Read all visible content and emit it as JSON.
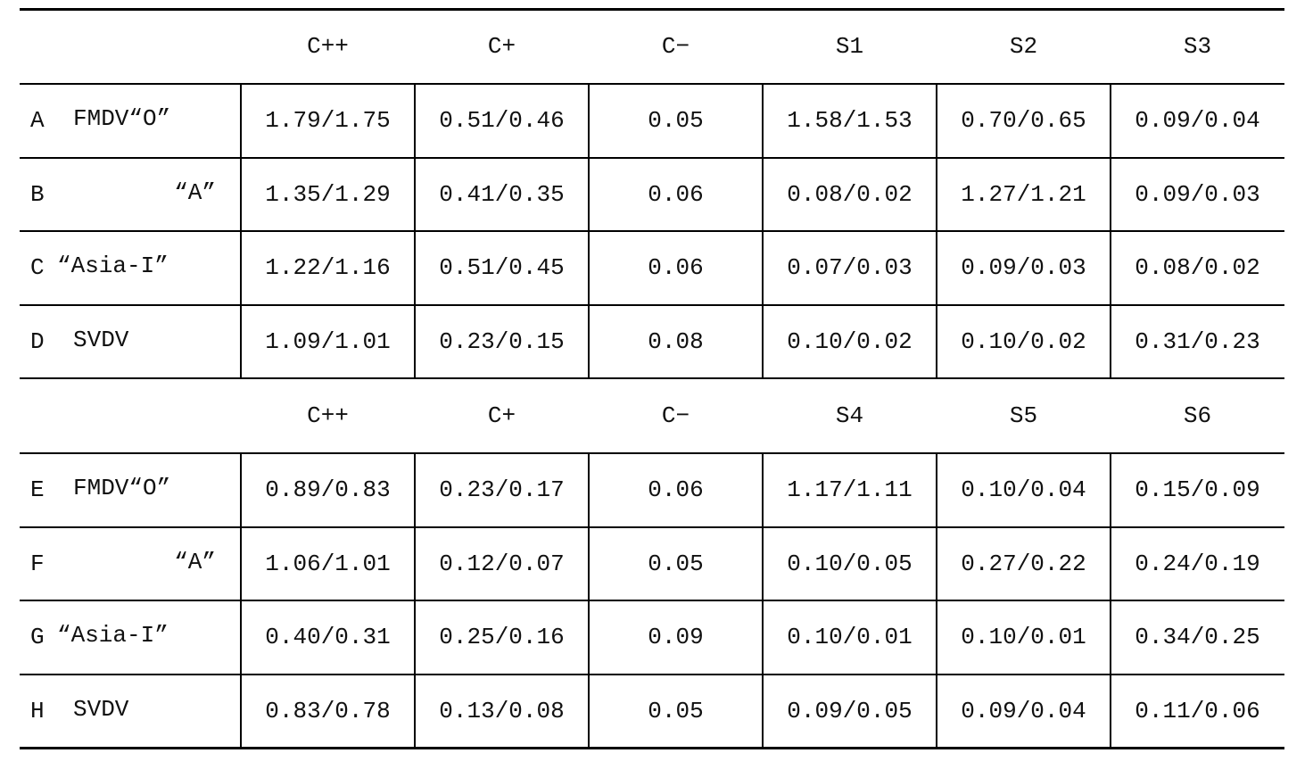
{
  "blocks": [
    {
      "header": [
        "C++",
        "C+",
        "C−",
        "S1",
        "S2",
        "S3"
      ],
      "rows": [
        {
          "label": "A",
          "name": "FMDV“O”",
          "values": [
            "1.79/1.75",
            "0.51/0.46",
            "0.05",
            "1.58/1.53",
            "0.70/0.65",
            "0.09/0.04"
          ]
        },
        {
          "label": "B",
          "name": "“A”",
          "values": [
            "1.35/1.29",
            "0.41/0.35",
            "0.06",
            "0.08/0.02",
            "1.27/1.21",
            "0.09/0.03"
          ]
        },
        {
          "label": "C",
          "name": "“Asia-I”",
          "values": [
            "1.22/1.16",
            "0.51/0.45",
            "0.06",
            "0.07/0.03",
            "0.09/0.03",
            "0.08/0.02"
          ]
        },
        {
          "label": "D",
          "name": "SVDV",
          "values": [
            "1.09/1.01",
            "0.23/0.15",
            "0.08",
            "0.10/0.02",
            "0.10/0.02",
            "0.31/0.23"
          ]
        }
      ]
    },
    {
      "header": [
        "C++",
        "C+",
        "C−",
        "S4",
        "S5",
        "S6"
      ],
      "rows": [
        {
          "label": "E",
          "name": "FMDV“O”",
          "values": [
            "0.89/0.83",
            "0.23/0.17",
            "0.06",
            "1.17/1.11",
            "0.10/0.04",
            "0.15/0.09"
          ]
        },
        {
          "label": "F",
          "name": "“A”",
          "values": [
            "1.06/1.01",
            "0.12/0.07",
            "0.05",
            "0.10/0.05",
            "0.27/0.22",
            "0.24/0.19"
          ]
        },
        {
          "label": "G",
          "name": "“Asia-I”",
          "values": [
            "0.40/0.31",
            "0.25/0.16",
            "0.09",
            "0.10/0.01",
            "0.10/0.01",
            "0.34/0.25"
          ]
        },
        {
          "label": "H",
          "name": "SVDV",
          "values": [
            "0.83/0.78",
            "0.13/0.08",
            "0.05",
            "0.09/0.05",
            "0.09/0.04",
            "0.11/0.06"
          ]
        }
      ]
    }
  ]
}
